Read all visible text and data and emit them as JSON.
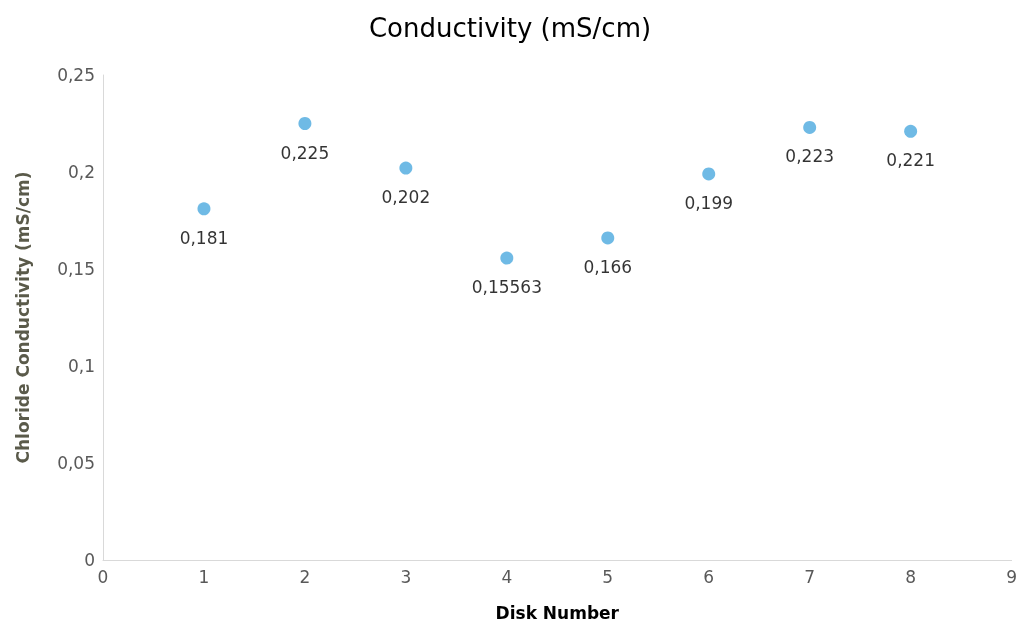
{
  "chart_data": {
    "type": "scatter",
    "title": "Conductivity (mS/cm)",
    "xlabel": "Disk Number",
    "ylabel": "Chloride Conductivity (mS/cm)",
    "x": [
      1,
      2,
      3,
      4,
      5,
      6,
      7,
      8
    ],
    "values": [
      0.181,
      0.225,
      0.202,
      0.15563,
      0.166,
      0.199,
      0.223,
      0.221
    ],
    "value_labels": [
      "0,181",
      "0,225",
      "0,202",
      "0,15563",
      "0,166",
      "0,199",
      "0,223",
      "0,221"
    ],
    "color": "#4ba9de",
    "marker": "circle",
    "xlim": [
      0,
      9
    ],
    "xticks": [
      0,
      1,
      2,
      3,
      4,
      5,
      6,
      7,
      8,
      9
    ],
    "ylim": [
      0,
      0.25
    ],
    "yticks": [
      {
        "value": 0,
        "label": "0"
      },
      {
        "value": 0.05,
        "label": "0,05"
      },
      {
        "value": 0.1,
        "label": "0,1"
      },
      {
        "value": 0.15,
        "label": "0,15"
      },
      {
        "value": 0.2,
        "label": "0,2"
      },
      {
        "value": 0.25,
        "label": "0,25"
      }
    ],
    "grid": false
  }
}
